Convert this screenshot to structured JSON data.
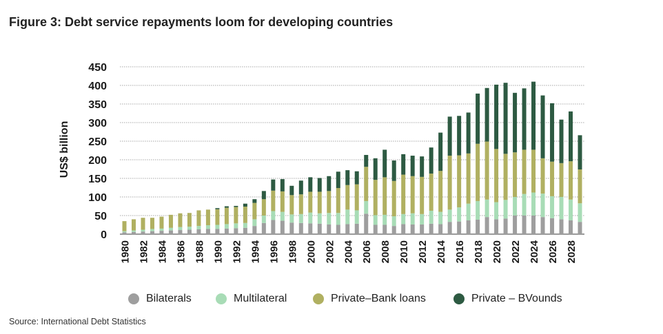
{
  "title": "Figure 3: Debt service repayments loom for developing countries",
  "source": "Source: International Debt Statistics",
  "colors": {
    "bilaterals": "#9e9e9e",
    "multilateral": "#a8dcb6",
    "bank": "#b0b061",
    "bonds": "#2d5a42",
    "grid": "#8a8a8a"
  },
  "legend": [
    {
      "name": "Bilaterals",
      "color": "#9e9e9e"
    },
    {
      "name": "Multilateral",
      "color": "#a8dcb6"
    },
    {
      "name": "Private–Bank loans",
      "color": "#b0b061"
    },
    {
      "name": "Private – BVounds",
      "color": "#2d5a42"
    }
  ],
  "chart_data": {
    "type": "bar",
    "stacked": true,
    "title": "Figure 3: Debt service repayments loom for developing countries",
    "ylabel": "US$ billion",
    "xlabel": "",
    "ylim": [
      0,
      450
    ],
    "yticks": [
      0,
      50,
      100,
      150,
      200,
      250,
      300,
      350,
      400,
      450
    ],
    "grid": true,
    "legend_position": "bottom",
    "categories": [
      "1980",
      "1981",
      "1982",
      "1983",
      "1984",
      "1985",
      "1986",
      "1987",
      "1988",
      "1989",
      "1990",
      "1991",
      "1992",
      "1993",
      "1994",
      "1995",
      "1996",
      "1997",
      "1998",
      "1999",
      "2000",
      "2001",
      "2002",
      "2003",
      "2004",
      "2005",
      "2006",
      "2007",
      "2008",
      "2009",
      "2010",
      "2011",
      "2012",
      "2013",
      "2014",
      "2015",
      "2016",
      "2017",
      "2018",
      "2019",
      "2020",
      "2021",
      "2022",
      "2023",
      "2024",
      "2025",
      "2026",
      "2027",
      "2028",
      "2029"
    ],
    "tick_labels": [
      "1980",
      "1982",
      "1984",
      "1986",
      "1988",
      "1990",
      "1992",
      "1994",
      "1996",
      "1998",
      "2000",
      "2002",
      "2004",
      "2006",
      "2008",
      "2010",
      "2012",
      "2014",
      "2016",
      "2018",
      "2020",
      "2022",
      "2024",
      "2026",
      "2028"
    ],
    "series": [
      {
        "name": "Bilaterals",
        "values": [
          5,
          6,
          7,
          8,
          9,
          10,
          11,
          12,
          13,
          14,
          14,
          15,
          16,
          17,
          22,
          30,
          38,
          36,
          31,
          30,
          29,
          28,
          26,
          25,
          27,
          28,
          55,
          25,
          25,
          22,
          27,
          26,
          26,
          28,
          27,
          33,
          34,
          37,
          39,
          46,
          40,
          42,
          50,
          50,
          50,
          46,
          43,
          40,
          37,
          33
        ]
      },
      {
        "name": "Multilateral",
        "values": [
          3,
          4,
          5,
          6,
          6,
          7,
          8,
          8,
          9,
          10,
          11,
          12,
          13,
          13,
          18,
          20,
          24,
          24,
          22,
          24,
          29,
          28,
          31,
          32,
          39,
          36,
          34,
          26,
          27,
          26,
          27,
          30,
          28,
          35,
          33,
          33,
          38,
          45,
          50,
          47,
          46,
          50,
          50,
          58,
          62,
          63,
          59,
          60,
          56,
          50
        ]
      },
      {
        "name": "Private–Bank loans",
        "values": [
          27,
          30,
          32,
          30,
          32,
          35,
          37,
          37,
          42,
          42,
          42,
          44,
          44,
          44,
          44,
          44,
          55,
          55,
          52,
          53,
          56,
          58,
          59,
          67,
          66,
          70,
          92,
          95,
          101,
          95,
          106,
          100,
          100,
          100,
          110,
          145,
          140,
          135,
          154,
          156,
          143,
          124,
          120,
          119,
          115,
          95,
          93,
          91,
          103,
          91
        ]
      },
      {
        "name": "Private – BVounds",
        "values": [
          0,
          0,
          0,
          0,
          0,
          0,
          0,
          0,
          0,
          0,
          3,
          4,
          3,
          8,
          10,
          22,
          30,
          33,
          25,
          37,
          39,
          37,
          40,
          44,
          40,
          35,
          32,
          58,
          74,
          55,
          55,
          55,
          55,
          70,
          103,
          105,
          106,
          110,
          135,
          144,
          173,
          191,
          160,
          165,
          183,
          169,
          157,
          117,
          134,
          92
        ]
      }
    ]
  }
}
